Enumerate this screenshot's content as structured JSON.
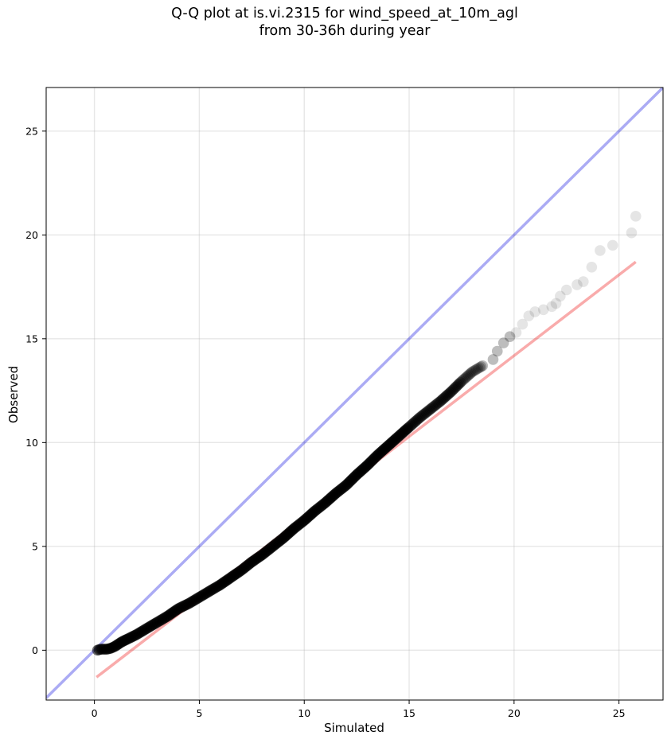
{
  "chart_data": {
    "type": "scatter",
    "title_lines": [
      "Q-Q plot at is.vi.2315 for wind_speed_at_10m_agl",
      "from 30-36h during year"
    ],
    "xlabel": "Simulated",
    "ylabel": "Observed",
    "xlim": [
      -2.3,
      27.1
    ],
    "ylim": [
      -2.4,
      27.1
    ],
    "xticks": [
      0,
      5,
      10,
      15,
      20,
      25
    ],
    "yticks": [
      0,
      5,
      10,
      15,
      20,
      25
    ],
    "grid": true,
    "reference_lines": [
      {
        "name": "1:1",
        "color": "#0000dd",
        "alpha": 0.33,
        "x": [
          -2.3,
          27.1
        ],
        "y": [
          -2.3,
          27.1
        ]
      },
      {
        "name": "fit",
        "color": "#ee0000",
        "alpha": 0.33,
        "x": [
          0.1,
          25.8
        ],
        "y": [
          -1.3,
          18.7
        ]
      }
    ],
    "quantile_points": {
      "color": "#000000",
      "x": [
        0.15,
        0.3,
        0.45,
        0.6,
        0.8,
        1.0,
        1.3,
        1.6,
        2.0,
        2.5,
        3.0,
        3.5,
        4.0,
        4.5,
        5.0,
        5.5,
        6.0,
        6.5,
        7.0,
        7.5,
        8.0,
        8.5,
        9.0,
        9.5,
        10.0,
        10.5,
        11.0,
        11.5,
        12.0,
        12.5,
        13.0,
        13.5,
        14.0,
        14.5,
        15.0,
        15.5,
        16.0,
        16.5,
        17.0,
        17.5,
        18.0,
        18.5,
        19.0,
        19.2,
        19.5,
        19.8,
        20.1,
        20.4,
        20.7,
        21.0,
        21.4,
        21.8,
        22.0,
        22.2,
        22.5,
        23.0,
        23.3,
        23.7,
        24.1,
        24.7,
        25.6,
        25.8
      ],
      "y": [
        0.0,
        0.05,
        0.05,
        0.05,
        0.1,
        0.2,
        0.4,
        0.55,
        0.75,
        1.05,
        1.35,
        1.65,
        2.0,
        2.25,
        2.55,
        2.85,
        3.15,
        3.5,
        3.85,
        4.25,
        4.6,
        5.0,
        5.4,
        5.85,
        6.25,
        6.7,
        7.1,
        7.55,
        7.95,
        8.45,
        8.9,
        9.4,
        9.85,
        10.3,
        10.75,
        11.2,
        11.6,
        12.0,
        12.45,
        12.95,
        13.4,
        13.7,
        14.0,
        14.4,
        14.8,
        15.1,
        15.3,
        15.7,
        16.1,
        16.3,
        16.4,
        16.55,
        16.7,
        17.05,
        17.35,
        17.6,
        17.75,
        18.45,
        19.25,
        19.5,
        20.1,
        20.9
      ]
    }
  }
}
